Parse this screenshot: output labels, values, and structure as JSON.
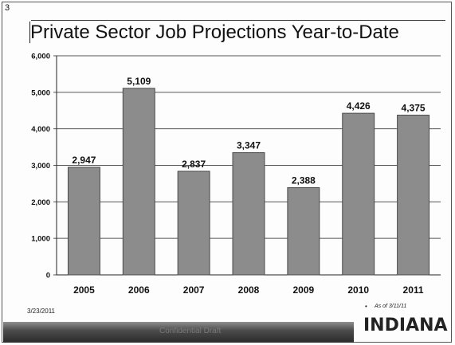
{
  "page_number": "3",
  "title": "Private Sector Job Projections Year-to-Date",
  "footer": {
    "date": "3/23/2011",
    "footnote_bullet": "•",
    "footnote": "As of 3/11/11",
    "strip_label": "Confidential Draft",
    "logo": "INDIANA"
  },
  "colors": {
    "bar_fill": "#8c8c8c",
    "bar_edge": "#4a4a4a",
    "gridline": "#555555"
  },
  "chart_data": {
    "type": "bar",
    "title": "Private Sector Job Projections Year-to-Date",
    "xlabel": "",
    "ylabel": "",
    "categories": [
      "2005",
      "2006",
      "2007",
      "2008",
      "2009",
      "2010",
      "2011"
    ],
    "values": [
      2947,
      5109,
      2837,
      3347,
      2388,
      4426,
      4375
    ],
    "data_labels": [
      "2,947",
      "5,109",
      "2,837",
      "3,347",
      "2,388",
      "4,426",
      "4,375"
    ],
    "yticks": [
      0,
      1000,
      2000,
      3000,
      4000,
      5000,
      6000
    ],
    "ytick_labels": [
      "0",
      "1,000",
      "2,000",
      "3,000",
      "4,000",
      "5,000",
      "6,000"
    ],
    "ylim": [
      0,
      6000
    ],
    "grid": true,
    "legend": "none"
  }
}
